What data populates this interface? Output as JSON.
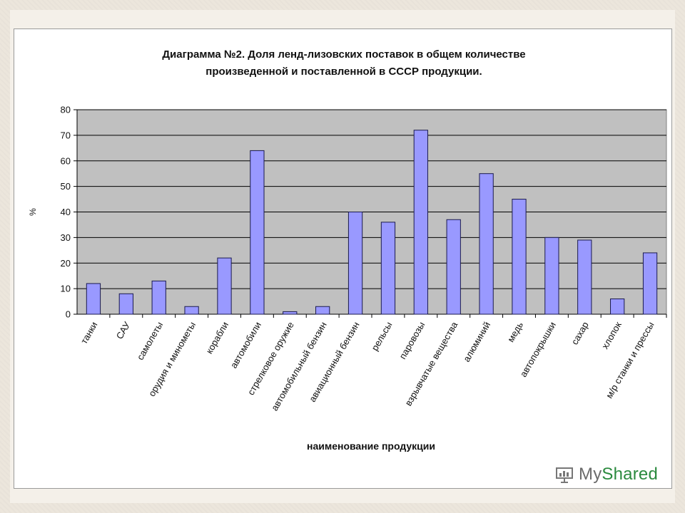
{
  "watermark": {
    "brand_prefix": "My",
    "brand_suffix": "Shared"
  },
  "chart_data": {
    "type": "bar",
    "title_lines": [
      "Диаграмма №2. Доля ленд-лизовских поставок в общем количестве",
      "произведенной и поставленной в СССР продукции."
    ],
    "xlabel": "наименование продукции",
    "ylabel": "%",
    "ylim": [
      0,
      80
    ],
    "yticks": [
      0,
      10,
      20,
      30,
      40,
      50,
      60,
      70,
      80
    ],
    "grid": true,
    "legend": "none",
    "colors": {
      "bar_fill": "#9999ff",
      "bar_stroke": "#1a1a4d",
      "plot_bg": "#c0c0c0",
      "grid": "#000000"
    },
    "categories": [
      "танки",
      "САУ",
      "самолеты",
      "орудия и минометы",
      "корабли",
      "автомобили",
      "стрелковое оружие",
      "автомобильный бензин",
      "авиационный бензин",
      "рельсы",
      "паровозы",
      "взрывчатые вещества",
      "алюминий",
      "медь",
      "автопокрышки",
      "сахар",
      "хлопок",
      "м/р станки и прессы"
    ],
    "values": [
      12,
      8,
      13,
      3,
      22,
      64,
      1,
      3,
      40,
      36,
      72,
      37,
      55,
      45,
      30,
      29,
      6,
      24
    ]
  }
}
